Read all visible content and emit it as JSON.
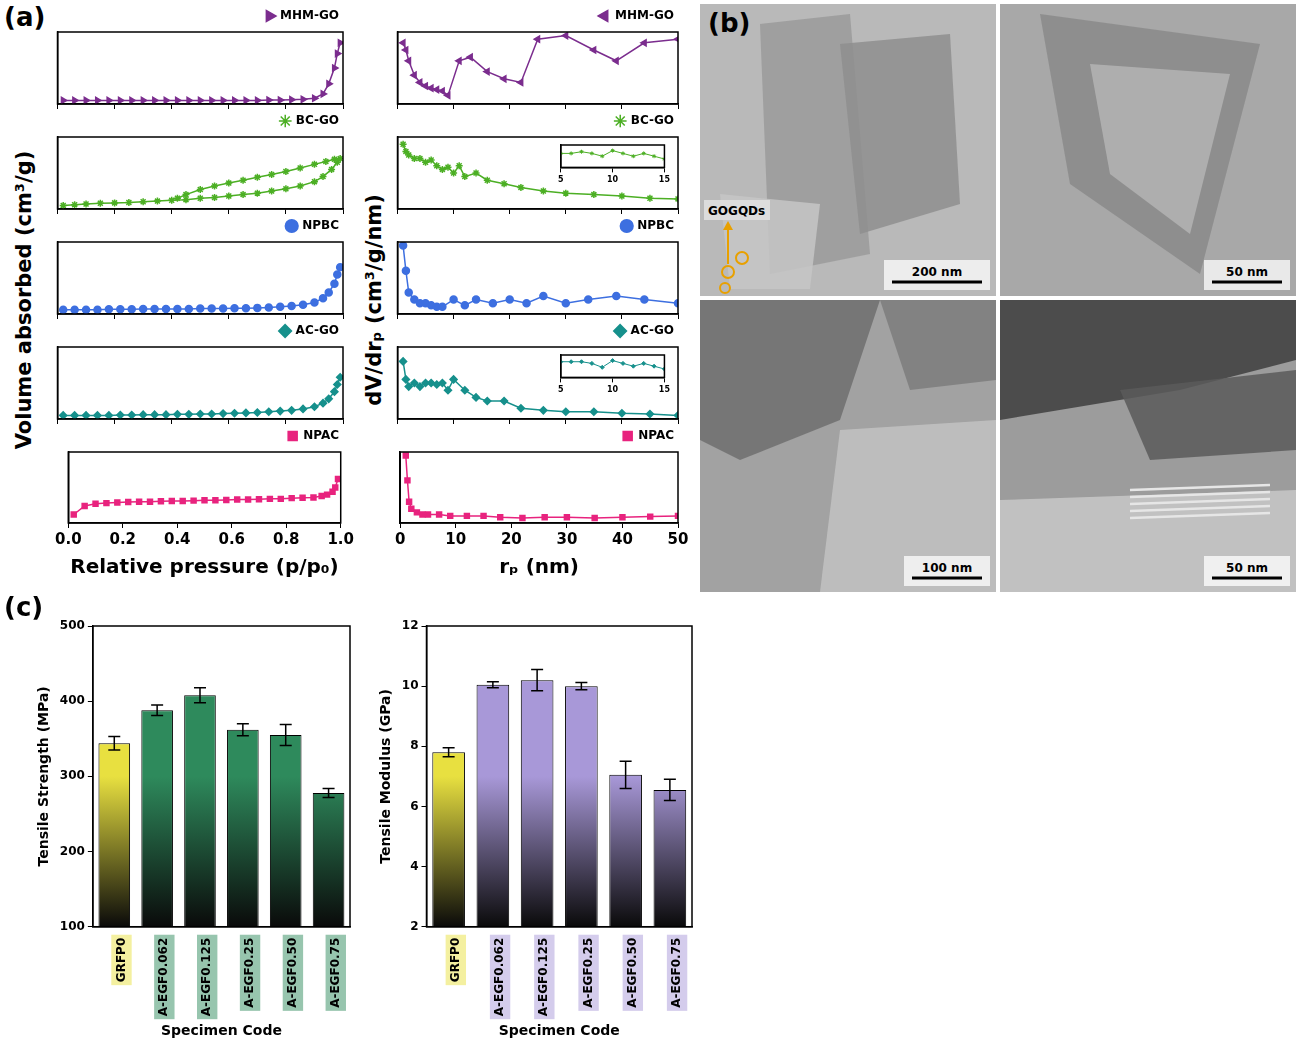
{
  "panel_labels": [
    "(a)",
    "(b)",
    "(c)"
  ],
  "chart_data": [
    {
      "type": "line",
      "x": [
        0.02,
        0.06,
        0.1,
        0.14,
        0.18,
        0.22,
        0.26,
        0.3,
        0.34,
        0.38,
        0.42,
        0.46,
        0.5,
        0.54,
        0.58,
        0.62,
        0.66,
        0.7,
        0.74,
        0.78,
        0.82,
        0.86,
        0.9,
        0.93,
        0.95,
        0.97,
        0.98,
        0.99
      ],
      "series": [
        {
          "name": "MHM-GO",
          "color": "#7b2d8e",
          "marker": "triangle-right",
          "values": [
            5,
            5,
            5,
            5,
            5,
            5,
            5,
            5,
            5,
            5,
            5,
            5,
            5,
            5,
            5,
            5,
            5,
            5,
            5.5,
            5.5,
            6,
            6.5,
            8,
            14,
            28,
            50,
            70,
            85
          ]
        }
      ],
      "xlim": [
        0,
        1
      ],
      "xticks": [
        {
          "value": 0,
          "label": "0.0"
        },
        0.2,
        0.4,
        0.6,
        0.8,
        {
          "value": 1,
          "label": "1.0"
        }
      ],
      "ylim": [
        0,
        100
      ],
      "grid": false,
      "legend": "upper right",
      "tick_labels": false
    },
    {
      "type": "line",
      "x": [
        0.02,
        0.06,
        0.1,
        0.15,
        0.2,
        0.25,
        0.3,
        0.35,
        0.4,
        0.45,
        0.5,
        0.55,
        0.6,
        0.65,
        0.7,
        0.75,
        0.8,
        0.85,
        0.9,
        0.93,
        0.96,
        0.98,
        0.99,
        0.97,
        0.94,
        0.9,
        0.85,
        0.8,
        0.75,
        0.7,
        0.65,
        0.6,
        0.55,
        0.5,
        0.45,
        0.42
      ],
      "series": [
        {
          "name": "BC-GO",
          "color": "#4caf24",
          "marker": "star",
          "values": [
            5,
            6,
            7,
            8,
            8.5,
            9,
            10,
            11,
            12,
            13,
            15,
            16,
            18,
            20,
            22,
            25,
            28,
            32,
            38,
            45,
            55,
            65,
            70,
            69,
            66,
            62,
            57,
            52,
            48,
            44,
            40,
            36,
            32,
            27,
            20,
            15
          ]
        }
      ],
      "xlim": [
        0,
        1
      ],
      "xticks": [
        {
          "value": 0,
          "label": "0.0"
        },
        0.2,
        0.4,
        0.6,
        0.8,
        {
          "value": 1,
          "label": "1.0"
        }
      ],
      "ylim": [
        0,
        100
      ],
      "grid": false,
      "legend": "upper right",
      "tick_labels": false
    },
    {
      "type": "line",
      "x": [
        0.02,
        0.06,
        0.1,
        0.14,
        0.18,
        0.22,
        0.26,
        0.3,
        0.34,
        0.38,
        0.42,
        0.46,
        0.5,
        0.54,
        0.58,
        0.62,
        0.66,
        0.7,
        0.74,
        0.78,
        0.82,
        0.86,
        0.9,
        0.93,
        0.95,
        0.97,
        0.98,
        0.99
      ],
      "series": [
        {
          "name": "NPBC",
          "color": "#3d6fe0",
          "marker": "circle",
          "values": [
            6,
            6,
            6,
            6,
            6.5,
            6.5,
            6.5,
            7,
            7,
            7,
            7,
            7,
            7.5,
            7.5,
            7.5,
            8,
            8,
            8.5,
            9,
            10,
            11,
            13,
            16,
            22,
            30,
            42,
            55,
            65
          ]
        }
      ],
      "xlim": [
        0,
        1
      ],
      "xticks": [
        {
          "value": 0,
          "label": "0.0"
        },
        0.2,
        0.4,
        0.6,
        0.8,
        {
          "value": 1,
          "label": "1.0"
        }
      ],
      "ylim": [
        0,
        100
      ],
      "grid": false,
      "legend": "upper right",
      "tick_labels": false,
      "ylabel": "Volume absorbed (cm³/g)"
    },
    {
      "type": "line",
      "x": [
        0.02,
        0.06,
        0.1,
        0.14,
        0.18,
        0.22,
        0.26,
        0.3,
        0.34,
        0.38,
        0.42,
        0.46,
        0.5,
        0.54,
        0.58,
        0.62,
        0.66,
        0.7,
        0.74,
        0.78,
        0.82,
        0.86,
        0.9,
        0.93,
        0.95,
        0.97,
        0.98,
        0.99
      ],
      "series": [
        {
          "name": "AC-GO",
          "color": "#16908c",
          "marker": "diamond",
          "values": [
            5,
            5,
            5,
            5,
            5,
            5.5,
            5.5,
            6,
            6,
            6,
            6.5,
            6.5,
            7,
            7,
            7.5,
            8,
            8.5,
            9,
            10,
            11,
            12,
            14,
            17,
            22,
            28,
            38,
            48,
            58
          ]
        }
      ],
      "xlim": [
        0,
        1
      ],
      "xticks": [
        {
          "value": 0,
          "label": "0.0"
        },
        0.2,
        0.4,
        0.6,
        0.8,
        {
          "value": 1,
          "label": "1.0"
        }
      ],
      "ylim": [
        0,
        100
      ],
      "grid": false,
      "legend": "upper right",
      "tick_labels": false
    },
    {
      "type": "line",
      "x": [
        0.02,
        0.06,
        0.1,
        0.14,
        0.18,
        0.22,
        0.26,
        0.3,
        0.34,
        0.38,
        0.42,
        0.46,
        0.5,
        0.54,
        0.58,
        0.62,
        0.66,
        0.7,
        0.74,
        0.78,
        0.82,
        0.86,
        0.9,
        0.93,
        0.95,
        0.97,
        0.98,
        0.99
      ],
      "series": [
        {
          "name": "NPAC",
          "color": "#e8237e",
          "marker": "square",
          "values": [
            12,
            24,
            27,
            28,
            29,
            29.5,
            30,
            30,
            30.5,
            31,
            31,
            31.5,
            32,
            32,
            32.5,
            33,
            33,
            33.5,
            34,
            34,
            35,
            35.5,
            36,
            38,
            40,
            44,
            50,
            62
          ]
        }
      ],
      "xlim": [
        0,
        1
      ],
      "xticks": [
        {
          "value": 0,
          "label": "0.0"
        },
        0.2,
        0.4,
        0.6,
        0.8,
        {
          "value": 1,
          "label": "1.0"
        }
      ],
      "ylim": [
        0,
        100
      ],
      "grid": false,
      "legend": "upper right",
      "tick_labels": "x",
      "xlabel": "Relative pressure (p/p₀)"
    },
    {
      "type": "line",
      "x": [
        1,
        1.5,
        2,
        3,
        4,
        5,
        6,
        7,
        8,
        9,
        11,
        13,
        16,
        19,
        22,
        25,
        30,
        35,
        39,
        44,
        50
      ],
      "series": [
        {
          "name": "MHM-GO",
          "color": "#7b2d8e",
          "marker": "triangle-left",
          "values": [
            85,
            75,
            60,
            40,
            30,
            25,
            22,
            20,
            18,
            12,
            60,
            65,
            45,
            35,
            30,
            90,
            95,
            75,
            60,
            85,
            90
          ]
        }
      ],
      "xlim": [
        0,
        50
      ],
      "xticks": [
        0,
        10,
        20,
        30,
        40,
        50
      ],
      "ylim": [
        0,
        100
      ],
      "grid": false,
      "legend": "upper right",
      "tick_labels": false
    },
    {
      "type": "line",
      "x": [
        1,
        1.5,
        2,
        3,
        4,
        5,
        6,
        7,
        8,
        9,
        10,
        11,
        12,
        14,
        16,
        19,
        22,
        26,
        30,
        35,
        40,
        45,
        50
      ],
      "series": [
        {
          "name": "BC-GO",
          "color": "#4caf24",
          "marker": "star",
          "values": [
            90,
            80,
            75,
            70,
            70,
            65,
            68,
            60,
            55,
            58,
            50,
            60,
            45,
            50,
            40,
            35,
            30,
            25,
            22,
            20,
            18,
            15,
            14
          ]
        }
      ],
      "xlim": [
        0,
        50
      ],
      "xticks": [
        0,
        10,
        20,
        30,
        40,
        50
      ],
      "ylim": [
        0,
        100
      ],
      "grid": false,
      "legend": "upper right",
      "tick_labels": false,
      "inset": {
        "x": [
          5,
          6,
          7,
          8,
          9,
          10,
          11,
          12,
          13,
          14,
          15
        ],
        "values": [
          55,
          55,
          58,
          55,
          50,
          60,
          55,
          50,
          55,
          50,
          45
        ],
        "xlim": [
          5,
          15
        ],
        "xticks": [
          5,
          10,
          15
        ],
        "ylim": [
          30,
          70
        ]
      }
    },
    {
      "type": "line",
      "x": [
        1,
        1.5,
        2,
        3,
        4,
        5,
        6,
        7,
        8,
        10,
        12,
        14,
        17,
        20,
        23,
        26,
        30,
        34,
        39,
        44,
        50
      ],
      "series": [
        {
          "name": "NPBC",
          "color": "#3d6fe0",
          "marker": "circle",
          "values": [
            95,
            60,
            30,
            20,
            15,
            15,
            12,
            10,
            10,
            20,
            12,
            20,
            15,
            20,
            15,
            25,
            15,
            20,
            25,
            20,
            15
          ]
        }
      ],
      "xlim": [
        0,
        50
      ],
      "xticks": [
        0,
        10,
        20,
        30,
        40,
        50
      ],
      "ylim": [
        0,
        100
      ],
      "grid": false,
      "legend": "upper right",
      "tick_labels": false,
      "ylabel": "dV/drₚ (cm³/g/nm)"
    },
    {
      "type": "line",
      "x": [
        1,
        1.5,
        2,
        3,
        4,
        5,
        6,
        7,
        8,
        9,
        10,
        12,
        14,
        16,
        19,
        22,
        26,
        30,
        35,
        40,
        45,
        50
      ],
      "series": [
        {
          "name": "AC-GO",
          "color": "#16908c",
          "marker": "diamond",
          "values": [
            80,
            55,
            45,
            50,
            45,
            50,
            50,
            48,
            50,
            40,
            55,
            40,
            30,
            25,
            25,
            15,
            12,
            10,
            10,
            8,
            7,
            5
          ]
        }
      ],
      "xlim": [
        0,
        50
      ],
      "xticks": [
        0,
        10,
        20,
        30,
        40,
        50
      ],
      "ylim": [
        0,
        100
      ],
      "grid": false,
      "legend": "upper right",
      "tick_labels": false,
      "inset": {
        "x": [
          5,
          6,
          7,
          8,
          9,
          10,
          11,
          12,
          13,
          14,
          15
        ],
        "values": [
          58,
          58,
          58,
          55,
          48,
          60,
          55,
          50,
          55,
          50,
          45
        ],
        "xlim": [
          5,
          15
        ],
        "xticks": [
          5,
          10,
          15
        ],
        "ylim": [
          30,
          70
        ]
      }
    },
    {
      "type": "line",
      "x": [
        1,
        1.3,
        1.6,
        2,
        3,
        4,
        5,
        7,
        9,
        12,
        15,
        18,
        22,
        26,
        30,
        35,
        40,
        45,
        50
      ],
      "series": [
        {
          "name": "NPAC",
          "color": "#e8237e",
          "marker": "square",
          "values": [
            95,
            60,
            30,
            20,
            15,
            12,
            12,
            12,
            10,
            10,
            10,
            8,
            7,
            8,
            8,
            7,
            8,
            9,
            10
          ]
        }
      ],
      "xlim": [
        0,
        50
      ],
      "xticks": [
        0,
        10,
        20,
        30,
        40,
        50
      ],
      "ylim": [
        0,
        100
      ],
      "grid": false,
      "legend": "upper right",
      "tick_labels": "x",
      "xlabel": "rₚ (nm)"
    },
    {
      "type": "bar",
      "categories": [
        "GRFP0",
        "A-EGF0.062",
        "A-EGF0.125",
        "A-EGF0.25",
        "A-EGF0.50",
        "A-EGF0.75"
      ],
      "values": [
        344,
        388,
        408,
        362,
        355,
        278
      ],
      "errors": [
        9,
        7,
        10,
        8,
        14,
        6
      ],
      "colors": [
        "#e8e040",
        "#2e8a5c",
        "#2e8a5c",
        "#2e8a5c",
        "#2e8a5c",
        "#2e8a5c"
      ],
      "xlabel": "Specimen Code",
      "ylabel": "Tensile Strength (MPa)",
      "ylim": [
        100,
        500
      ],
      "yticks": [
        100,
        200,
        300,
        400,
        500
      ],
      "grid": false
    },
    {
      "type": "bar",
      "categories": [
        "GRFP0",
        "A-EGF0.062",
        "A-EGF0.125",
        "A-EGF0.25",
        "A-EGF0.50",
        "A-EGF0.75"
      ],
      "values": [
        7.8,
        10.05,
        10.2,
        10.0,
        7.05,
        6.55
      ],
      "errors": [
        0.15,
        0.1,
        0.35,
        0.12,
        0.45,
        0.35
      ],
      "colors": [
        "#e8e040",
        "#a898d8",
        "#a898d8",
        "#a898d8",
        "#a898d8",
        "#a898d8"
      ],
      "xlabel": "Specimen Code",
      "ylabel": "Tensile Modulus (GPa)",
      "ylim": [
        2,
        12
      ],
      "yticks": [
        2,
        4,
        6,
        8,
        10,
        12
      ],
      "grid": false
    }
  ],
  "tem_images": [
    {
      "scale_bar": "200 nm",
      "annotation": "GOGQDs"
    },
    {
      "scale_bar": "50 nm"
    },
    {
      "scale_bar": "100 nm"
    },
    {
      "scale_bar": "50 nm"
    }
  ]
}
